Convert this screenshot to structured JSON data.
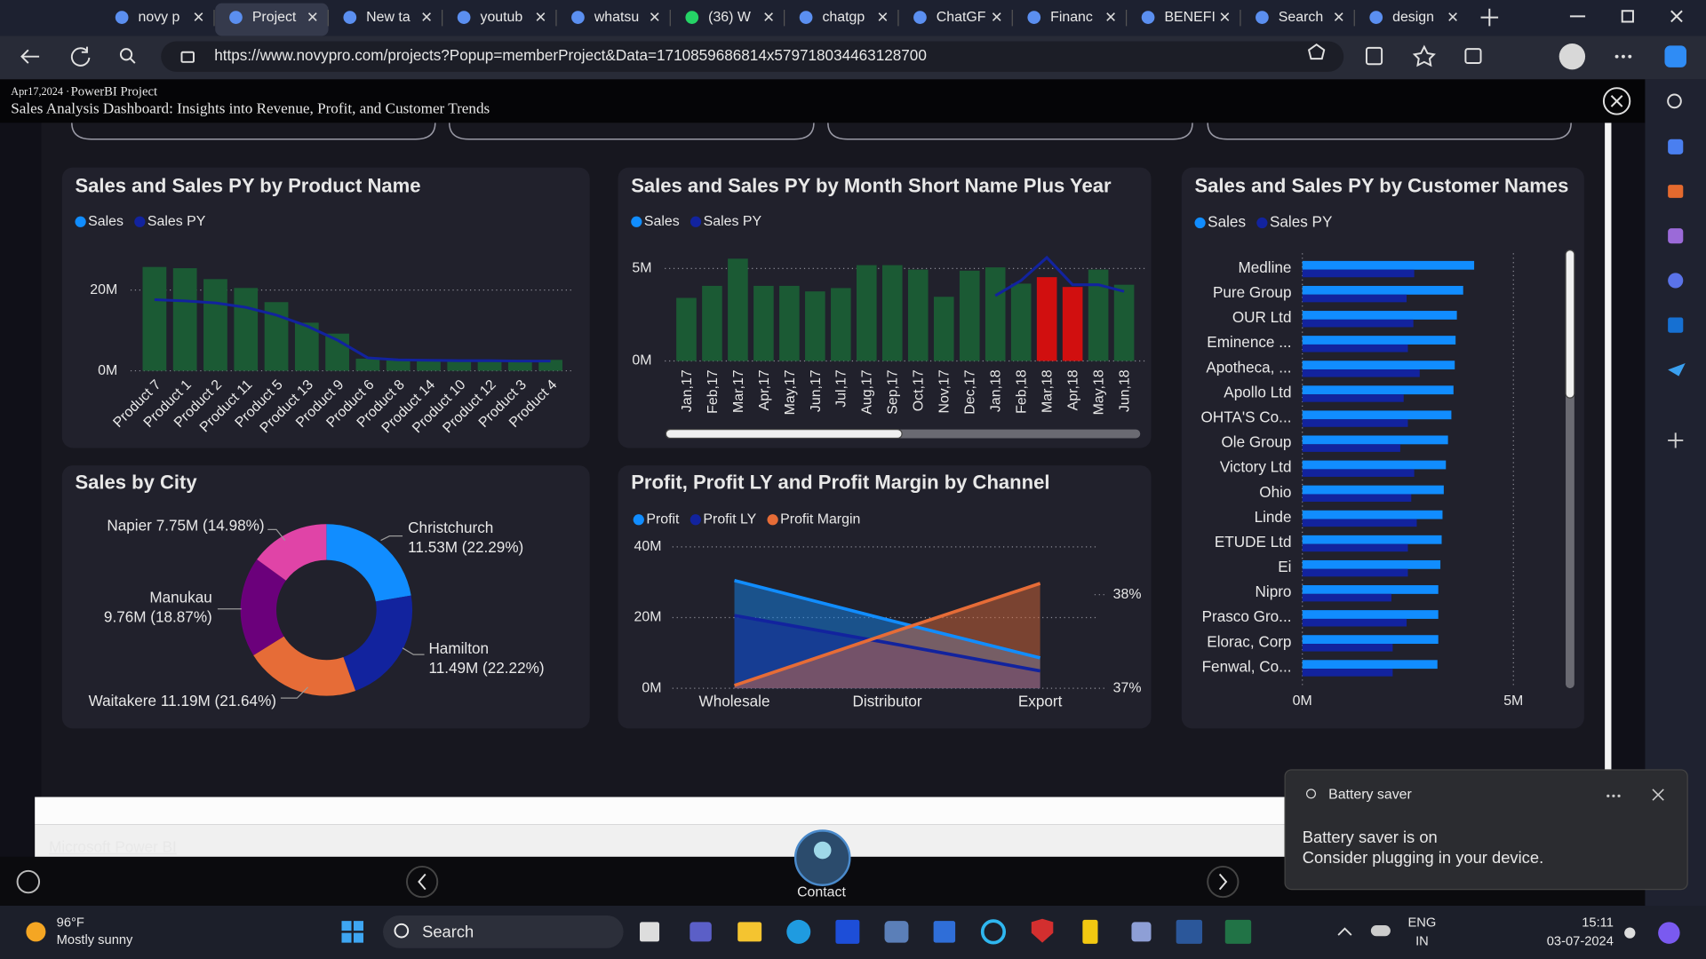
{
  "browser": {
    "tabs": [
      "novy p",
      "Project",
      "New ta",
      "youtub",
      "whatsu",
      "(36) W",
      "chatgp",
      "ChatGF",
      "Financ",
      "BENEFI",
      "Search",
      "design"
    ],
    "url": "https://www.novypro.com/projects?Popup=memberProject&Data=1710859686814x579718034463128700"
  },
  "header": {
    "date": "Apr17,2024 ·",
    "category": "PowerBI Project",
    "title": "Sales Analysis Dashboard: Insights into Revenue, Profit, and Customer Trends"
  },
  "chart_data": [
    {
      "type": "combo",
      "title": "Sales and Sales PY by Product Name",
      "categories": [
        "Product 7",
        "Product 1",
        "Product 2",
        "Product 11",
        "Product 5",
        "Product 13",
        "Product 9",
        "Product 6",
        "Product 8",
        "Product 14",
        "Product 10",
        "Product 12",
        "Product 3",
        "Product 4"
      ],
      "bar_color": "#1b5a34",
      "series": [
        {
          "name": "Sales",
          "type": "bar",
          "color": "#118dff",
          "values": [
            25.7,
            25.4,
            22.7,
            20.5,
            17.0,
            11.9,
            9.2,
            3.0,
            2.7,
            2.7,
            2.7,
            2.7,
            2.7,
            2.7
          ]
        },
        {
          "name": "Sales PY",
          "type": "line",
          "color": "#12239e",
          "values": [
            17.6,
            17.3,
            16.8,
            15.7,
            13.8,
            11.1,
            7.6,
            3.2,
            2.7,
            2.6,
            2.5,
            2.5,
            2.4,
            2.4
          ]
        }
      ],
      "ylim": [
        0,
        28
      ],
      "yticks": [
        {
          "value": 0,
          "label": "0M"
        },
        {
          "value": 20,
          "label": "20M"
        }
      ],
      "grid": true
    },
    {
      "type": "combo",
      "title": "Sales and Sales PY by Month Short Name Plus Year",
      "categories": [
        "Jan,17",
        "Feb,17",
        "Mar,17",
        "Apr,17",
        "May,17",
        "Jun,17",
        "Jul,17",
        "Aug,17",
        "Sep,17",
        "Oct,17",
        "Nov,17",
        "Dec,17",
        "Jan,18",
        "Feb,18",
        "Mar,18",
        "Apr,18",
        "May,18",
        "Jun,18"
      ],
      "bar_colors": [
        "#1b5a34",
        "#1b5a34",
        "#1b5a34",
        "#1b5a34",
        "#1b5a34",
        "#1b5a34",
        "#1b5a34",
        "#1b5a34",
        "#1b5a34",
        "#1b5a34",
        "#1b5a34",
        "#1b5a34",
        "#1b5a34",
        "#1b5a34",
        "#d10f0f",
        "#d10f0f",
        "#1b5a34",
        "#1b5a34"
      ],
      "series": [
        {
          "name": "Sales",
          "type": "bar",
          "color": "#118dff",
          "values": [
            3.41,
            4.06,
            5.53,
            4.06,
            4.06,
            3.76,
            3.94,
            5.18,
            5.18,
            4.94,
            3.47,
            4.88,
            5.06,
            4.18,
            4.53,
            4.0,
            4.94,
            4.12
          ]
        },
        {
          "name": "Sales PY",
          "type": "line",
          "color": "#12239e",
          "values": [
            null,
            null,
            null,
            null,
            null,
            null,
            null,
            null,
            null,
            null,
            null,
            null,
            3.53,
            4.35,
            5.59,
            4.12,
            4.12,
            3.76
          ]
        }
      ],
      "ylim": [
        0,
        5.7
      ],
      "yticks": [
        {
          "value": 0,
          "label": "0M"
        },
        {
          "value": 5,
          "label": "5M"
        }
      ],
      "grid": true
    },
    {
      "type": "bar",
      "orientation": "horizontal",
      "title": "Sales and Sales PY by Customer Names",
      "categories": [
        "Medline",
        "Pure Group",
        "OUR Ltd",
        "Eminence ...",
        "Apotheca, ...",
        "Apollo Ltd",
        "OHTA'S Co...",
        "Ole Group",
        "Victory Ltd",
        "Ohio",
        "Linde",
        "ETUDE Ltd",
        "Ei",
        "Nipro",
        "Prasco Gro...",
        "Elorac, Corp",
        "Fenwal, Co..."
      ],
      "series": [
        {
          "name": "Sales",
          "color": "#118dff",
          "values": [
            4.07,
            3.81,
            3.66,
            3.63,
            3.61,
            3.58,
            3.53,
            3.45,
            3.4,
            3.35,
            3.32,
            3.3,
            3.27,
            3.22,
            3.22,
            3.22,
            3.2
          ]
        },
        {
          "name": "Sales PY",
          "color": "#12239e",
          "values": [
            2.65,
            2.47,
            2.63,
            2.5,
            2.78,
            2.4,
            2.5,
            2.32,
            2.65,
            2.58,
            2.71,
            2.5,
            2.5,
            2.11,
            2.47,
            2.14,
            2.14
          ]
        }
      ],
      "xlim": [
        0,
        5
      ],
      "xticks": [
        {
          "value": 0,
          "label": "0M"
        },
        {
          "value": 5,
          "label": "5M"
        }
      ],
      "grid": true
    },
    {
      "type": "donut",
      "title": "Sales by City",
      "categories": [
        "Christchurch",
        "Hamilton",
        "Waitakere",
        "Manukau",
        "Napier"
      ],
      "values": [
        11.53,
        11.49,
        11.19,
        9.76,
        7.75
      ],
      "value_labels": [
        "11.53M (22.29%)",
        "11.49M (22.22%)",
        "11.19M (21.64%)",
        "9.76M (18.87%)",
        "7.75M (14.98%)"
      ],
      "colors": [
        "#118dff",
        "#12239e",
        "#e66c37",
        "#6b007b",
        "#e044a7"
      ]
    },
    {
      "type": "area",
      "title": "Profit, Profit LY and Profit Margin by Channel",
      "categories": [
        "Wholesale",
        "Distributor",
        "Export"
      ],
      "series": [
        {
          "name": "Profit",
          "color": "#118dff",
          "values": [
            30.5,
            19.4,
            8.6
          ]
        },
        {
          "name": "Profit LY",
          "color": "#12239e",
          "values": [
            20.6,
            12.9,
            4.9
          ]
        },
        {
          "name": "Profit Margin",
          "color": "#e66c37",
          "axis": "y2",
          "values": [
            37.03,
            37.58,
            38.12
          ]
        }
      ],
      "ylim": [
        0,
        40
      ],
      "yticks": [
        {
          "value": 0,
          "label": "0M"
        },
        {
          "value": 20,
          "label": "20M"
        },
        {
          "value": 40,
          "label": "40M"
        }
      ],
      "y2lim": [
        37,
        38.51
      ],
      "y2ticks": [
        {
          "value": 37,
          "label": "37%"
        },
        {
          "value": 38,
          "label": "38%"
        }
      ],
      "grid": true
    }
  ],
  "footer": {
    "link": "Microsoft Power BI",
    "contact": "Contact"
  },
  "notification": {
    "title": "Battery saver",
    "heading": "Battery saver is on",
    "body": "Consider plugging in your device."
  },
  "taskbar": {
    "temperature": "96°F",
    "weather": "Mostly sunny",
    "search": "Search",
    "language": "ENG",
    "region": "IN",
    "time": "15:11",
    "date": "03-07-2024"
  }
}
